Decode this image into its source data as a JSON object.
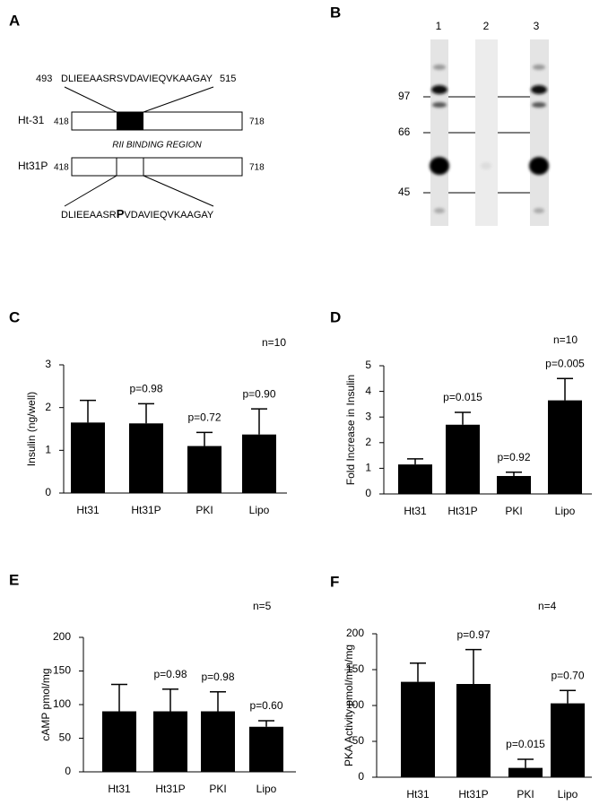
{
  "panel_a": {
    "label": "A",
    "top_start": "493",
    "top_sequence": "DLIEEAASRSVDAVIEQVKAAGAY",
    "top_end": "515",
    "construct1": "Ht-31",
    "start1": "418",
    "end1": "718",
    "region": "RII BINDING REGION",
    "construct2": "Ht31P",
    "start2": "418",
    "end2": "718",
    "bottom_sequence_before": "DLIEEAASR",
    "bottom_mutation": "P",
    "bottom_sequence_after": "VDAVIEQVKAAGAY"
  },
  "panel_b": {
    "label": "B",
    "lanes": [
      "1",
      "2",
      "3"
    ],
    "markers": [
      "97",
      "66",
      "45"
    ]
  },
  "chart_data": [
    {
      "type": "bar",
      "panel": "C",
      "ylabel": "Insulin (ng/well)",
      "annotation": "n=10",
      "categories": [
        "Ht31",
        "Ht31P",
        "PKI",
        "Lipo"
      ],
      "values": [
        1.65,
        1.63,
        1.1,
        1.37
      ],
      "errors": [
        0.52,
        0.46,
        0.32,
        0.6
      ],
      "p_labels": [
        null,
        "p=0.98",
        "p=0.72",
        "p=0.90"
      ],
      "color": "#000000",
      "ylim": [
        0,
        3
      ],
      "yticks": [
        0,
        1,
        2,
        3
      ]
    },
    {
      "type": "bar",
      "panel": "D",
      "ylabel": "Fold Increase in Insulin",
      "annotation": "n=10",
      "categories": [
        "Ht31",
        "Ht31P",
        "PKI",
        "Lipo"
      ],
      "values": [
        1.15,
        2.7,
        0.7,
        3.65
      ],
      "errors": [
        0.22,
        0.48,
        0.15,
        0.85
      ],
      "p_labels": [
        null,
        "p=0.015",
        "p=0.92",
        "p=0.005"
      ],
      "color": "#000000",
      "ylim": [
        0,
        5
      ],
      "yticks": [
        0,
        1,
        2,
        3,
        4,
        5
      ]
    },
    {
      "type": "bar",
      "panel": "E",
      "ylabel": "cAMP pmol/mg",
      "annotation": "n=5",
      "categories": [
        "Ht31",
        "Ht31P",
        "PKI",
        "Lipo"
      ],
      "values": [
        90,
        90,
        90,
        67
      ],
      "errors": [
        40,
        33,
        29,
        9
      ],
      "p_labels": [
        null,
        "p=0.98",
        "p=0.98",
        "p=0.60"
      ],
      "color": "#000000",
      "ylim": [
        0,
        200
      ],
      "yticks": [
        0,
        50,
        100,
        150,
        200
      ]
    },
    {
      "type": "bar",
      "panel": "F",
      "ylabel": "PKA Activity pmol/min/mg",
      "annotation": "n=4",
      "categories": [
        "Ht31",
        "Ht31P",
        "PKI",
        "Lipo"
      ],
      "values": [
        133,
        130,
        13,
        103
      ],
      "errors": [
        26,
        48,
        12,
        18
      ],
      "p_labels": [
        null,
        "p=0.97",
        "p=0.015",
        "p=0.70"
      ],
      "color": "#000000",
      "ylim": [
        0,
        200
      ],
      "yticks": [
        0,
        50,
        100,
        150,
        200
      ]
    }
  ]
}
